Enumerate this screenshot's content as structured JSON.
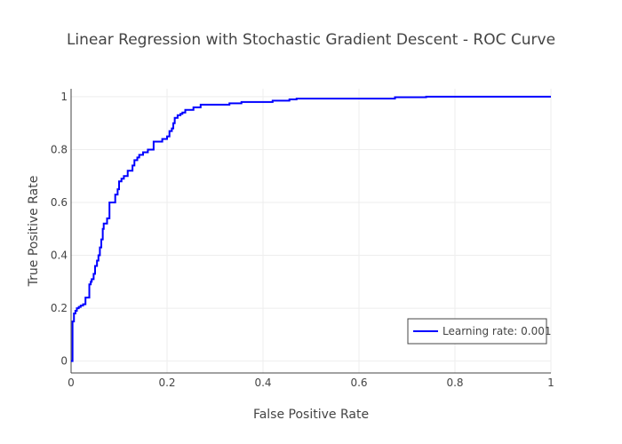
{
  "chart_data": {
    "type": "line",
    "title": "Linear Regression with Stochastic Gradient Descent - ROC Curve",
    "xlabel": "False Positive Rate",
    "ylabel": "True Positive Rate",
    "xlim": [
      0,
      1
    ],
    "ylim": [
      -0.045,
      1.03
    ],
    "xticks": [
      0,
      0.2,
      0.4,
      0.6,
      0.8,
      1
    ],
    "yticks": [
      0,
      0.2,
      0.4,
      0.6,
      0.8,
      1
    ],
    "xtick_labels": [
      "0",
      "0.2",
      "0.4",
      "0.6",
      "0.8",
      "1"
    ],
    "ytick_labels": [
      "0",
      "0.2",
      "0.4",
      "0.6",
      "0.8",
      "1"
    ],
    "grid": true,
    "legend_position": "bottom-right",
    "series": [
      {
        "name": "Learning rate: 0.001",
        "color": "#0000ff",
        "x": [
          0,
          0.003,
          0.003,
          0.006,
          0.006,
          0.009,
          0.009,
          0.012,
          0.012,
          0.016,
          0.016,
          0.02,
          0.02,
          0.025,
          0.025,
          0.03,
          0.03,
          0.038,
          0.038,
          0.041,
          0.041,
          0.043,
          0.043,
          0.047,
          0.047,
          0.05,
          0.05,
          0.054,
          0.054,
          0.057,
          0.057,
          0.06,
          0.06,
          0.063,
          0.063,
          0.066,
          0.066,
          0.068,
          0.068,
          0.075,
          0.075,
          0.08,
          0.08,
          0.092,
          0.092,
          0.097,
          0.097,
          0.1,
          0.1,
          0.105,
          0.105,
          0.11,
          0.11,
          0.118,
          0.118,
          0.128,
          0.128,
          0.132,
          0.132,
          0.138,
          0.138,
          0.142,
          0.142,
          0.15,
          0.15,
          0.16,
          0.16,
          0.172,
          0.172,
          0.18,
          0.18,
          0.19,
          0.19,
          0.2,
          0.2,
          0.205,
          0.205,
          0.21,
          0.21,
          0.213,
          0.213,
          0.216,
          0.216,
          0.219,
          0.219,
          0.222,
          0.222,
          0.228,
          0.228,
          0.232,
          0.232,
          0.238,
          0.238,
          0.255,
          0.255,
          0.27,
          0.27,
          0.285,
          0.285,
          0.33,
          0.33,
          0.355,
          0.355,
          0.42,
          0.42,
          0.455,
          0.455,
          0.47,
          0.47,
          0.675,
          0.675,
          0.74,
          0.74,
          1.0
        ],
        "y": [
          0,
          0,
          0.15,
          0.15,
          0.18,
          0.18,
          0.19,
          0.19,
          0.2,
          0.2,
          0.205,
          0.205,
          0.21,
          0.21,
          0.215,
          0.215,
          0.24,
          0.24,
          0.29,
          0.29,
          0.3,
          0.3,
          0.31,
          0.31,
          0.33,
          0.33,
          0.36,
          0.36,
          0.38,
          0.38,
          0.4,
          0.4,
          0.43,
          0.43,
          0.46,
          0.46,
          0.5,
          0.5,
          0.52,
          0.52,
          0.54,
          0.54,
          0.6,
          0.6,
          0.63,
          0.63,
          0.65,
          0.65,
          0.68,
          0.68,
          0.69,
          0.69,
          0.7,
          0.7,
          0.72,
          0.72,
          0.74,
          0.74,
          0.76,
          0.76,
          0.77,
          0.77,
          0.78,
          0.78,
          0.79,
          0.79,
          0.8,
          0.8,
          0.83,
          0.83,
          0.83,
          0.83,
          0.84,
          0.84,
          0.85,
          0.85,
          0.87,
          0.87,
          0.88,
          0.88,
          0.9,
          0.9,
          0.92,
          0.92,
          0.92,
          0.92,
          0.93,
          0.93,
          0.935,
          0.935,
          0.94,
          0.94,
          0.95,
          0.95,
          0.96,
          0.96,
          0.97,
          0.97,
          0.97,
          0.97,
          0.975,
          0.975,
          0.98,
          0.98,
          0.985,
          0.985,
          0.99,
          0.99,
          0.993,
          0.993,
          0.998,
          0.998,
          1.0,
          1.0
        ]
      }
    ]
  }
}
